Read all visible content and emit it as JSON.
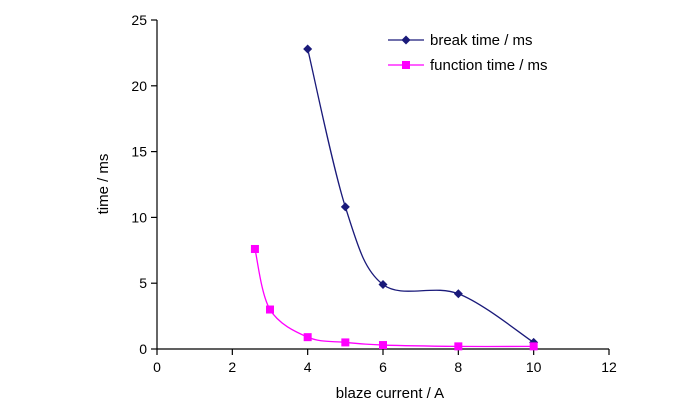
{
  "chart_data": {
    "type": "scatter",
    "xlabel": "blaze current / A",
    "ylabel": "time / ms",
    "xlim": [
      0,
      12
    ],
    "ylim": [
      0,
      25
    ],
    "x_ticks": [
      "0",
      "2",
      "4",
      "6",
      "8",
      "10",
      "12"
    ],
    "y_ticks": [
      "0",
      "5",
      "10",
      "15",
      "20",
      "25"
    ],
    "grid": false,
    "legend_position": "top-right",
    "series": [
      {
        "name": "break time / ms",
        "color": "#1a1a7a",
        "marker": "diamond",
        "line": "smooth",
        "x": [
          4,
          5,
          6,
          8,
          10
        ],
        "y": [
          22.8,
          10.8,
          4.9,
          4.2,
          0.5
        ]
      },
      {
        "name": "function time / ms",
        "color": "#ff00ff",
        "marker": "square",
        "line": "smooth",
        "x": [
          2.6,
          3,
          4,
          5,
          6,
          8,
          10
        ],
        "y": [
          7.6,
          3.0,
          0.9,
          0.5,
          0.3,
          0.2,
          0.2
        ]
      }
    ]
  }
}
